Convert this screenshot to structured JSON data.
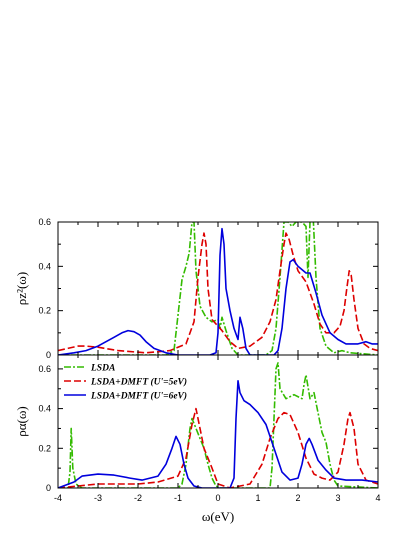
{
  "chart_data": [
    {
      "type": "line",
      "panel": "top",
      "ylabel": "ρz²(ω)",
      "xlim": [
        -4,
        4
      ],
      "ylim": [
        0,
        0.6
      ],
      "yticks": [
        "0",
        "0.2",
        "0.4",
        "0.6"
      ],
      "legend": null,
      "series": [
        {
          "name": "LSDA",
          "color": "#33bb00",
          "dash": "dashdot",
          "points": [
            [
              -4,
              0
            ],
            [
              -1.3,
              0
            ],
            [
              -1.1,
              0.02
            ],
            [
              -1.0,
              0.18
            ],
            [
              -0.9,
              0.34
            ],
            [
              -0.8,
              0.4
            ],
            [
              -0.72,
              0.46
            ],
            [
              -0.65,
              0.6
            ],
            [
              -0.6,
              0.6
            ],
            [
              -0.55,
              0.38
            ],
            [
              -0.45,
              0.22
            ],
            [
              -0.3,
              0.17
            ],
            [
              -0.15,
              0.15
            ],
            [
              0.0,
              0.16
            ],
            [
              0.05,
              0.12
            ],
            [
              0.1,
              0.17
            ],
            [
              0.2,
              0.11
            ],
            [
              0.35,
              0.03
            ],
            [
              0.5,
              0
            ],
            [
              1.2,
              0
            ],
            [
              1.35,
              0.02
            ],
            [
              1.45,
              0.12
            ],
            [
              1.55,
              0.35
            ],
            [
              1.65,
              0.6
            ],
            [
              1.75,
              0.6
            ],
            [
              1.85,
              0.58
            ],
            [
              1.95,
              0.6
            ],
            [
              2.1,
              0.6
            ],
            [
              2.2,
              0.58
            ],
            [
              2.25,
              0.35
            ],
            [
              2.3,
              0.6
            ],
            [
              2.38,
              0.62
            ],
            [
              2.45,
              0.35
            ],
            [
              2.55,
              0.12
            ],
            [
              2.7,
              0.04
            ],
            [
              2.9,
              0.01
            ],
            [
              3.1,
              0.02
            ],
            [
              3.3,
              0.01
            ],
            [
              4.0,
              0
            ]
          ]
        },
        {
          "name": "LSDA+DMFT (U'=5eV)",
          "color": "#dd0000",
          "dash": "dashed",
          "points": [
            [
              -4,
              0.02
            ],
            [
              -3.5,
              0.04
            ],
            [
              -3.3,
              0.04
            ],
            [
              -3.0,
              0.035
            ],
            [
              -2.5,
              0.02
            ],
            [
              -1.8,
              0.01
            ],
            [
              -1.2,
              0.02
            ],
            [
              -0.8,
              0.05
            ],
            [
              -0.6,
              0.15
            ],
            [
              -0.5,
              0.35
            ],
            [
              -0.4,
              0.5
            ],
            [
              -0.35,
              0.55
            ],
            [
              -0.3,
              0.5
            ],
            [
              -0.25,
              0.3
            ],
            [
              -0.15,
              0.16
            ],
            [
              0.0,
              0.13
            ],
            [
              0.1,
              0.11
            ],
            [
              0.3,
              0.06
            ],
            [
              0.5,
              0.03
            ],
            [
              0.8,
              0.04
            ],
            [
              1.1,
              0.08
            ],
            [
              1.3,
              0.15
            ],
            [
              1.45,
              0.25
            ],
            [
              1.55,
              0.38
            ],
            [
              1.65,
              0.5
            ],
            [
              1.7,
              0.55
            ],
            [
              1.78,
              0.52
            ],
            [
              1.88,
              0.45
            ],
            [
              2.0,
              0.38
            ],
            [
              2.2,
              0.33
            ],
            [
              2.4,
              0.23
            ],
            [
              2.55,
              0.14
            ],
            [
              2.7,
              0.1
            ],
            [
              2.9,
              0.1
            ],
            [
              3.05,
              0.13
            ],
            [
              3.15,
              0.2
            ],
            [
              3.22,
              0.3
            ],
            [
              3.28,
              0.38
            ],
            [
              3.33,
              0.36
            ],
            [
              3.4,
              0.25
            ],
            [
              3.5,
              0.12
            ],
            [
              3.65,
              0.05
            ],
            [
              3.8,
              0.03
            ],
            [
              4.0,
              0.02
            ]
          ]
        },
        {
          "name": "LSDA+DMFT (U'=6eV)",
          "color": "#0000dd",
          "dash": "solid",
          "points": [
            [
              -4,
              0
            ],
            [
              -3.6,
              0.01
            ],
            [
              -3.3,
              0.02
            ],
            [
              -3.0,
              0.04
            ],
            [
              -2.8,
              0.06
            ],
            [
              -2.6,
              0.08
            ],
            [
              -2.4,
              0.1
            ],
            [
              -2.25,
              0.11
            ],
            [
              -2.1,
              0.105
            ],
            [
              -1.95,
              0.09
            ],
            [
              -1.8,
              0.06
            ],
            [
              -1.6,
              0.03
            ],
            [
              -1.3,
              0.01
            ],
            [
              -1.0,
              0
            ],
            [
              -0.2,
              0
            ],
            [
              -0.05,
              0.01
            ],
            [
              0.0,
              0.1
            ],
            [
              0.05,
              0.45
            ],
            [
              0.1,
              0.57
            ],
            [
              0.15,
              0.5
            ],
            [
              0.2,
              0.3
            ],
            [
              0.3,
              0.2
            ],
            [
              0.4,
              0.12
            ],
            [
              0.5,
              0.07
            ],
            [
              0.55,
              0.17
            ],
            [
              0.62,
              0.12
            ],
            [
              0.7,
              0.03
            ],
            [
              0.8,
              0
            ],
            [
              1.4,
              0
            ],
            [
              1.5,
              0.02
            ],
            [
              1.6,
              0.12
            ],
            [
              1.7,
              0.3
            ],
            [
              1.8,
              0.42
            ],
            [
              1.88,
              0.43
            ],
            [
              2.0,
              0.4
            ],
            [
              2.2,
              0.37
            ],
            [
              2.3,
              0.37
            ],
            [
              2.45,
              0.28
            ],
            [
              2.6,
              0.18
            ],
            [
              2.8,
              0.1
            ],
            [
              3.0,
              0.07
            ],
            [
              3.2,
              0.05
            ],
            [
              3.5,
              0.05
            ],
            [
              3.7,
              0.06
            ],
            [
              3.85,
              0.05
            ],
            [
              4.0,
              0.05
            ]
          ]
        }
      ]
    },
    {
      "type": "line",
      "panel": "bottom",
      "ylabel": "ρα(ω)",
      "xlabel": "ω(eV)",
      "xlim": [
        -4,
        4
      ],
      "ylim": [
        0,
        0.67
      ],
      "xticks": [
        "-4",
        "-3",
        "-2",
        "-1",
        "0",
        "1",
        "2",
        "3",
        "4"
      ],
      "yticks": [
        "0",
        "0.2",
        "0.4",
        "0.6"
      ],
      "legend": "top-left",
      "series": [
        {
          "name": "LSDA",
          "color": "#33bb00",
          "dash": "dashdot",
          "points": [
            [
              -4,
              0
            ],
            [
              -3.75,
              0
            ],
            [
              -3.7,
              0.08
            ],
            [
              -3.67,
              0.3
            ],
            [
              -3.63,
              0.1
            ],
            [
              -3.55,
              0.02
            ],
            [
              -3.4,
              0
            ],
            [
              -1.0,
              0
            ],
            [
              -0.9,
              0.02
            ],
            [
              -0.8,
              0.12
            ],
            [
              -0.7,
              0.3
            ],
            [
              -0.65,
              0.35
            ],
            [
              -0.55,
              0.3
            ],
            [
              -0.45,
              0.25
            ],
            [
              -0.35,
              0.2
            ],
            [
              -0.25,
              0.12
            ],
            [
              -0.15,
              0.05
            ],
            [
              -0.05,
              0.01
            ],
            [
              0.05,
              0
            ],
            [
              1.3,
              0
            ],
            [
              1.35,
              0.1
            ],
            [
              1.4,
              0.35
            ],
            [
              1.45,
              0.6
            ],
            [
              1.5,
              0.63
            ],
            [
              1.55,
              0.5
            ],
            [
              1.7,
              0.45
            ],
            [
              1.9,
              0.47
            ],
            [
              2.1,
              0.45
            ],
            [
              2.15,
              0.52
            ],
            [
              2.2,
              0.57
            ],
            [
              2.3,
              0.45
            ],
            [
              2.4,
              0.48
            ],
            [
              2.5,
              0.38
            ],
            [
              2.6,
              0.28
            ],
            [
              2.7,
              0.23
            ],
            [
              2.8,
              0.12
            ],
            [
              2.9,
              0.04
            ],
            [
              3.0,
              0.01
            ],
            [
              4.0,
              0
            ]
          ]
        },
        {
          "name": "LSDA+DMFT (U'=5eV)",
          "color": "#dd0000",
          "dash": "dashed",
          "points": [
            [
              -4,
              0
            ],
            [
              -3.5,
              0.01
            ],
            [
              -3.0,
              0.02
            ],
            [
              -2.0,
              0.02
            ],
            [
              -1.5,
              0.03
            ],
            [
              -1.0,
              0.06
            ],
            [
              -0.8,
              0.15
            ],
            [
              -0.65,
              0.32
            ],
            [
              -0.55,
              0.4
            ],
            [
              -0.45,
              0.3
            ],
            [
              -0.35,
              0.2
            ],
            [
              -0.25,
              0.15
            ],
            [
              -0.15,
              0.1
            ],
            [
              0.0,
              0.02
            ],
            [
              0.3,
              0
            ],
            [
              0.8,
              0.02
            ],
            [
              1.1,
              0.12
            ],
            [
              1.3,
              0.25
            ],
            [
              1.5,
              0.35
            ],
            [
              1.65,
              0.38
            ],
            [
              1.8,
              0.37
            ],
            [
              2.0,
              0.28
            ],
            [
              2.2,
              0.15
            ],
            [
              2.4,
              0.07
            ],
            [
              2.6,
              0.05
            ],
            [
              2.8,
              0.04
            ],
            [
              3.0,
              0.08
            ],
            [
              3.15,
              0.22
            ],
            [
              3.25,
              0.35
            ],
            [
              3.3,
              0.38
            ],
            [
              3.4,
              0.3
            ],
            [
              3.5,
              0.12
            ],
            [
              3.7,
              0.04
            ],
            [
              4.0,
              0.02
            ]
          ]
        },
        {
          "name": "LSDA+DMFT (U'=6eV)",
          "color": "#0000dd",
          "dash": "solid",
          "points": [
            [
              -4,
              0
            ],
            [
              -3.6,
              0.03
            ],
            [
              -3.4,
              0.06
            ],
            [
              -3.0,
              0.07
            ],
            [
              -2.6,
              0.065
            ],
            [
              -2.2,
              0.05
            ],
            [
              -1.9,
              0.04
            ],
            [
              -1.5,
              0.06
            ],
            [
              -1.3,
              0.12
            ],
            [
              -1.15,
              0.2
            ],
            [
              -1.05,
              0.26
            ],
            [
              -0.95,
              0.22
            ],
            [
              -0.85,
              0.12
            ],
            [
              -0.75,
              0.05
            ],
            [
              -0.6,
              0.01
            ],
            [
              -0.4,
              0
            ],
            [
              0.3,
              0
            ],
            [
              0.4,
              0.05
            ],
            [
              0.45,
              0.35
            ],
            [
              0.5,
              0.54
            ],
            [
              0.55,
              0.48
            ],
            [
              0.65,
              0.44
            ],
            [
              0.8,
              0.42
            ],
            [
              1.0,
              0.38
            ],
            [
              1.2,
              0.32
            ],
            [
              1.4,
              0.2
            ],
            [
              1.6,
              0.08
            ],
            [
              1.8,
              0.04
            ],
            [
              2.0,
              0.05
            ],
            [
              2.1,
              0.12
            ],
            [
              2.2,
              0.22
            ],
            [
              2.28,
              0.25
            ],
            [
              2.35,
              0.22
            ],
            [
              2.5,
              0.14
            ],
            [
              2.7,
              0.09
            ],
            [
              2.9,
              0.05
            ],
            [
              3.2,
              0.04
            ],
            [
              3.6,
              0.04
            ],
            [
              4.0,
              0.03
            ]
          ]
        }
      ]
    }
  ]
}
